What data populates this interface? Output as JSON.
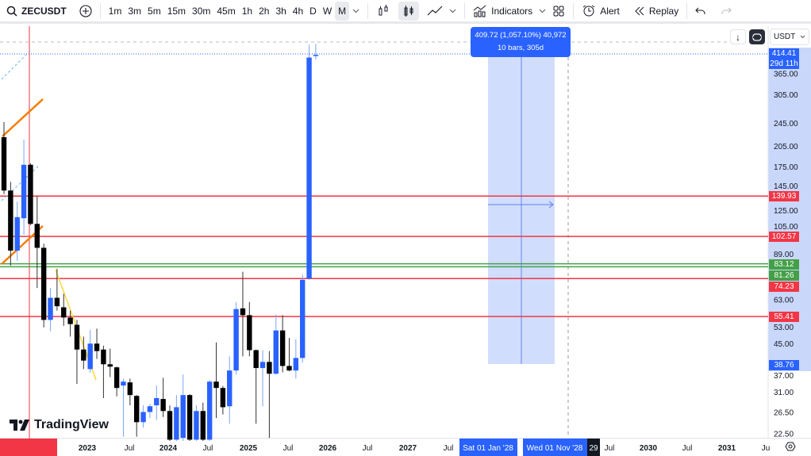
{
  "toolbar": {
    "symbol": "ZECUSDT",
    "intervals": [
      "1m",
      "3m",
      "5m",
      "15m",
      "30m",
      "45m",
      "1h",
      "2h",
      "3h",
      "4h",
      "D",
      "W",
      "M"
    ],
    "active_interval": "M",
    "indicators_label": "Indicators",
    "alert_label": "Alert",
    "replay_label": "Replay"
  },
  "currency_select": "USDT",
  "measure": {
    "line1": "409.72 (1,057.10%) 40,972",
    "line2": "10 bars, 305d"
  },
  "logo_text": "TradingView",
  "colors": {
    "bull": "#2962ff",
    "bear": "#000000",
    "support_red": "#f23645",
    "support_green": "#43a047",
    "measure_fill": "#c9d7fb",
    "accent": "#2962ff"
  },
  "chart_data": {
    "type": "candlestick",
    "symbol": "ZECUSDT",
    "timeframe": "M",
    "yscale": "log",
    "ylim": [
      22.5,
      414.41
    ],
    "y_ticks": [
      "365.00",
      "305.00",
      "245.00",
      "205.00",
      "175.00",
      "145.00",
      "125.00",
      "105.00",
      "89.00",
      "63.00",
      "53.00",
      "45.00",
      "37.00",
      "31.00",
      "26.50",
      "22.50"
    ],
    "x_ticks": [
      "2023",
      "Jul",
      "2024",
      "Jul",
      "2025",
      "Jul",
      "2026",
      "Jul",
      "2027",
      "Jul",
      "Jul",
      "2030",
      "Jul",
      "2031",
      "Ju"
    ],
    "x_highlight_labels": [
      "Sat 01 Jan '28",
      "Wed 01 Nov '28",
      "29"
    ],
    "last_price": {
      "value": "414.41",
      "countdown": "29d 11h"
    },
    "measure_low_label": "38.76",
    "horizontal_levels": [
      {
        "price": "139.93",
        "color": "red"
      },
      {
        "price": "102.57",
        "color": "red"
      },
      {
        "price": "83.12",
        "color": "green"
      },
      {
        "price": "81.26",
        "color": "green"
      },
      {
        "price": "74.23",
        "color": "red"
      },
      {
        "price": "55.41",
        "color": "red"
      }
    ],
    "candles_ohlc": [
      [
        220,
        247,
        142,
        146
      ],
      [
        146,
        156,
        82,
        92
      ],
      [
        92,
        134,
        85,
        119
      ],
      [
        118,
        216,
        104,
        178
      ],
      [
        178,
        180,
        112,
        113
      ],
      [
        113,
        140,
        69,
        94
      ],
      [
        94,
        97,
        51,
        54
      ],
      [
        54,
        69,
        49.5,
        64
      ],
      [
        64,
        80,
        58,
        60
      ],
      [
        59.5,
        66,
        51.6,
        55
      ],
      [
        55,
        58,
        47.5,
        52.3
      ],
      [
        52,
        54,
        33,
        43
      ],
      [
        43,
        47.5,
        37,
        39.5
      ],
      [
        37,
        50,
        36,
        45
      ],
      [
        45,
        50.5,
        40,
        42.5
      ],
      [
        43,
        44.3,
        29.6,
        38.4
      ],
      [
        38.4,
        43.3,
        34.8,
        37.7
      ],
      [
        37.5,
        37.7,
        30,
        32
      ],
      [
        32.6,
        34.4,
        22,
        33.6
      ],
      [
        33.4,
        34.4,
        28,
        30.3
      ],
      [
        30.1,
        30.3,
        22,
        24.6
      ],
      [
        24.6,
        28,
        23.6,
        26.6
      ],
      [
        26.6,
        28.3,
        25.4,
        27.8
      ],
      [
        28,
        32.6,
        25,
        29.6
      ],
      [
        29.4,
        34.6,
        25.6,
        26.8
      ],
      [
        26.8,
        28,
        21.3,
        21.5
      ],
      [
        21.5,
        30.3,
        21.3,
        27.6
      ],
      [
        21.8,
        35.5,
        21.3,
        30.3
      ],
      [
        30.3,
        30.5,
        21.3,
        21.5
      ],
      [
        21.5,
        28,
        21.3,
        26.8
      ],
      [
        26.8,
        28.6,
        21.3,
        21.5
      ],
      [
        21.5,
        34,
        21.3,
        33.6
      ],
      [
        33.6,
        45.4,
        25.4,
        32
      ],
      [
        32,
        32.5,
        26.1,
        27.6
      ],
      [
        27.8,
        40.8,
        24.3,
        36.6
      ],
      [
        36.6,
        61.9,
        35.5,
        58.7
      ],
      [
        59,
        78.2,
        40.8,
        56
      ],
      [
        56,
        62,
        40.8,
        42.8
      ],
      [
        42.8,
        43,
        24.3,
        37.3
      ],
      [
        37.3,
        42.8,
        27.8,
        39.1
      ],
      [
        39.1,
        42.5,
        21.8,
        35.7
      ],
      [
        35.7,
        56.3,
        35.5,
        49.8
      ],
      [
        49.8,
        56,
        36.1,
        37.9
      ],
      [
        37.9,
        47,
        36.4,
        36.6
      ],
      [
        36.6,
        46.6,
        34.4,
        40.3
      ],
      [
        40.3,
        76.5,
        38.9,
        73.5
      ],
      [
        74.2,
        448,
        73.5,
        406
      ],
      [
        412,
        451,
        400,
        414.41
      ]
    ]
  }
}
